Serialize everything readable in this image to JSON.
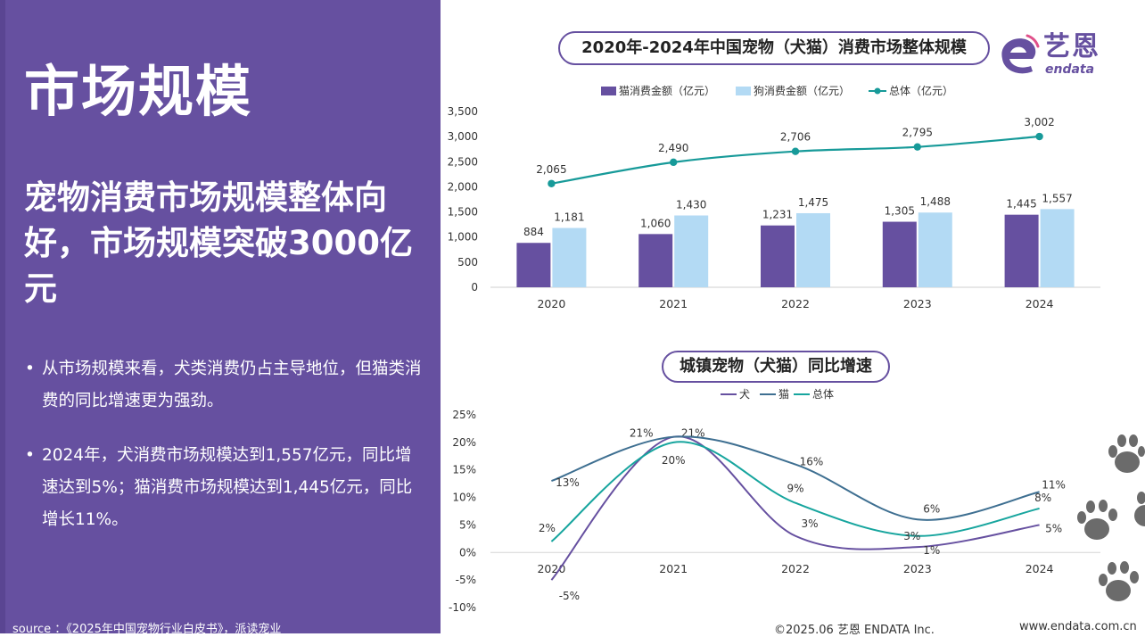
{
  "left": {
    "title": "市场规模",
    "subtitle": "宠物消费市场规模整体向好，市场规模突破3000亿元",
    "bullets": [
      "从市场规模来看，犬类消费仍占主导地位，但猫类消费的同比增速更为强劲。",
      "2024年，犬消费市场规模达到1,557亿元，同比增速达到5%；猫消费市场规模达到1,445亿元，同比增长11%。"
    ],
    "source": "source ：《2025年中国宠物行业白皮书》，派读宠业"
  },
  "logo": {
    "cn": "艺恩",
    "en": "endata"
  },
  "footer": {
    "copyright": "©2025.06  艺恩 ENDATA Inc.",
    "url": "www.endata.com.cn"
  },
  "colors": {
    "cat": "#6650a0",
    "dog": "#b3daf4",
    "total": "#179a99",
    "dogLine": "#6650a0",
    "catLine": "#3e6f91",
    "totalLine": "#17a59e"
  },
  "chart_data": [
    {
      "type": "bar",
      "title": "2020年-2024年中国宠物（犬猫）消费市场整体规模",
      "categories": [
        "2020",
        "2021",
        "2022",
        "2023",
        "2024"
      ],
      "series": [
        {
          "name": "猫消费金额（亿元）",
          "kind": "bar",
          "values": [
            884,
            1060,
            1231,
            1305,
            1445
          ],
          "labels": [
            "884",
            "1,060",
            "1,231",
            "1,305",
            "1,445"
          ]
        },
        {
          "name": "狗消费金额（亿元）",
          "kind": "bar",
          "values": [
            1181,
            1430,
            1475,
            1488,
            1557
          ],
          "labels": [
            "1,181",
            "1,430",
            "1,475",
            "1,488",
            "1,557"
          ]
        },
        {
          "name": "总体（亿元）",
          "kind": "line",
          "values": [
            2065,
            2490,
            2706,
            2795,
            3002
          ],
          "labels": [
            "2,065",
            "2,490",
            "2,706",
            "2,795",
            "3,002"
          ]
        }
      ],
      "ylim": [
        0,
        3500
      ],
      "yticks": [
        0,
        500,
        1000,
        1500,
        2000,
        2500,
        3000,
        3500
      ],
      "ytick_labels": [
        "0",
        "500",
        "1,000",
        "1,500",
        "2,000",
        "2,500",
        "3,000",
        "3,500"
      ],
      "legend": "top"
    },
    {
      "type": "line",
      "title": "城镇宠物（犬猫）同比增速",
      "categories": [
        "2020",
        "2021",
        "2022",
        "2023",
        "2024"
      ],
      "series": [
        {
          "name": "犬",
          "values": [
            -5,
            21,
            3,
            1,
            5
          ],
          "labels": [
            "-5%",
            "21%",
            "3%",
            "1%",
            "5%"
          ]
        },
        {
          "name": "猫",
          "values": [
            13,
            21,
            16,
            6,
            11
          ],
          "labels": [
            "13%",
            "21%",
            "16%",
            "6%",
            "11%"
          ]
        },
        {
          "name": "总体",
          "values": [
            2,
            20,
            9,
            3,
            8
          ],
          "labels": [
            "2%",
            "20%",
            "9%",
            "3%",
            "8%"
          ]
        }
      ],
      "ylim": [
        -10,
        25
      ],
      "yticks": [
        -10,
        -5,
        0,
        5,
        10,
        15,
        20,
        25
      ],
      "ytick_labels": [
        "-10%",
        "-5%",
        "0%",
        "5%",
        "10%",
        "15%",
        "20%",
        "25%"
      ],
      "legend": "top"
    }
  ]
}
